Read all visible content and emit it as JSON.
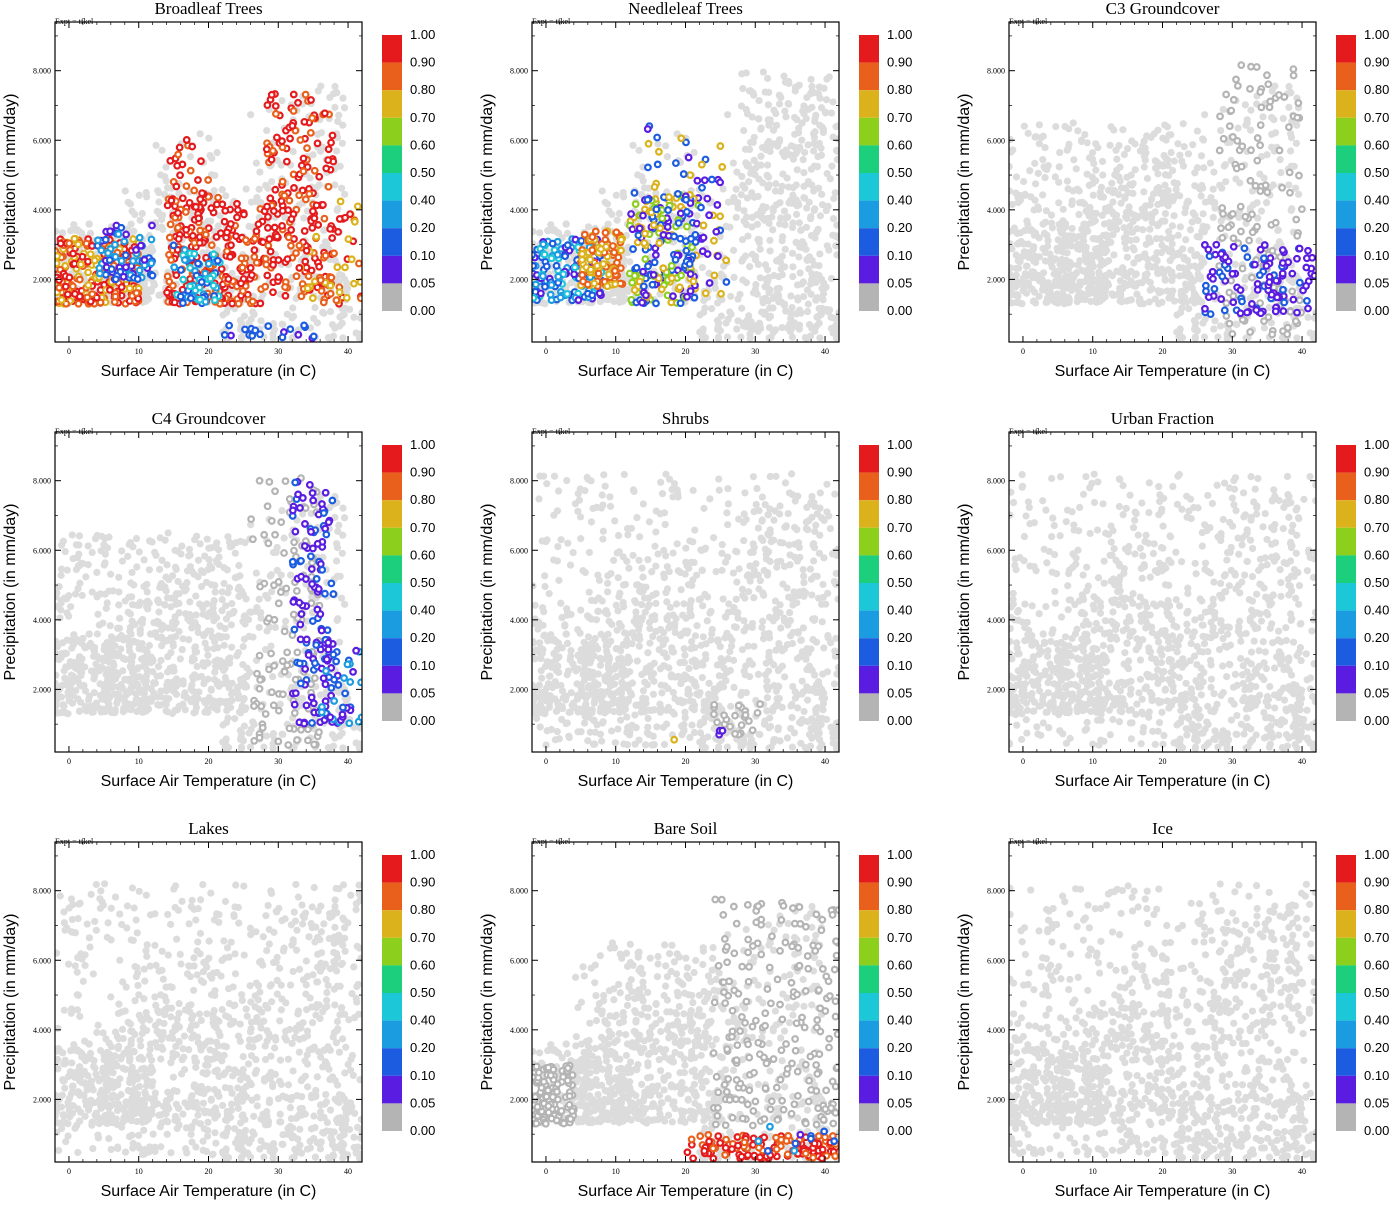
{
  "expt_label": "Expt = tfkel",
  "colorbar": {
    "labels": [
      "1.00",
      "0.90",
      "0.80",
      "0.70",
      "0.60",
      "0.50",
      "0.40",
      "0.20",
      "0.10",
      "0.05",
      "0.00"
    ],
    "colors": [
      "#e41a1c",
      "#e8601c",
      "#dcb21c",
      "#8ccf1c",
      "#1ccf7c",
      "#1cc8d8",
      "#1c9ce0",
      "#1c5ce0",
      "#5a1ce0",
      "#b4b4b4"
    ]
  },
  "chart_data": [
    {
      "type": "scatter",
      "title": "Broadleaf Trees",
      "xlabel": "Surface Air Temperature (in C)",
      "ylabel": "Precipitation (in mm/day)",
      "xlim": [
        -2,
        42
      ],
      "ylim": [
        0.2,
        9.4
      ],
      "xticks": [
        "0",
        "10",
        "20",
        "30",
        "40"
      ],
      "yticks": [
        "2.000",
        "4.000",
        "6.000",
        "8.000"
      ],
      "clusters": [
        {
          "x": [
            -2,
            10
          ],
          "y": [
            1.3,
            3.2
          ],
          "n": 260,
          "c": [
            7,
            8,
            9
          ]
        },
        {
          "x": [
            4,
            12
          ],
          "y": [
            2.0,
            3.6
          ],
          "n": 70,
          "c": [
            2,
            3,
            1
          ]
        },
        {
          "x": [
            14,
            28
          ],
          "y": [
            1.3,
            4.4
          ],
          "n": 220,
          "c": [
            9,
            9,
            8
          ]
        },
        {
          "x": [
            14,
            20
          ],
          "y": [
            3.0,
            6.2
          ],
          "n": 40,
          "c": [
            9,
            8,
            9
          ]
        },
        {
          "x": [
            28,
            38
          ],
          "y": [
            1.5,
            7.5
          ],
          "n": 180,
          "c": [
            9,
            8,
            9
          ]
        },
        {
          "x": [
            33,
            42
          ],
          "y": [
            1.3,
            4.5
          ],
          "n": 60,
          "c": [
            8,
            7,
            9
          ]
        },
        {
          "x": [
            15,
            22
          ],
          "y": [
            1.3,
            3.0
          ],
          "n": 60,
          "c": [
            3,
            2,
            4
          ]
        },
        {
          "x": [
            22,
            36
          ],
          "y": [
            0.3,
            0.7
          ],
          "n": 18,
          "c": [
            2,
            1,
            2
          ]
        }
      ]
    },
    {
      "type": "scatter",
      "title": "Needleleaf Trees",
      "xlabel": "Surface Air Temperature (in C)",
      "ylabel": "Precipitation (in mm/day)",
      "xlim": [
        -2,
        42
      ],
      "ylim": [
        0.2,
        9.4
      ],
      "xticks": [
        "0",
        "10",
        "20",
        "30",
        "40"
      ],
      "yticks": [
        "2.000",
        "4.000",
        "6.000",
        "8.000"
      ],
      "clusters": [
        {
          "x": [
            28,
            42
          ],
          "y": [
            0.5,
            8.0
          ],
          "n": 260,
          "c": [
            -1
          ]
        },
        {
          "x": [
            -2,
            8
          ],
          "y": [
            1.4,
            3.2
          ],
          "n": 160,
          "c": [
            2,
            3,
            1,
            4
          ]
        },
        {
          "x": [
            5,
            11
          ],
          "y": [
            1.8,
            3.4
          ],
          "n": 110,
          "c": [
            8,
            7
          ]
        },
        {
          "x": [
            12,
            22
          ],
          "y": [
            1.3,
            4.5
          ],
          "n": 170,
          "c": [
            7,
            6,
            2,
            1
          ]
        },
        {
          "x": [
            14,
            26
          ],
          "y": [
            1.5,
            6.5
          ],
          "n": 90,
          "c": [
            1,
            2,
            7
          ]
        }
      ]
    },
    {
      "type": "scatter",
      "title": "C3 Groundcover",
      "xlabel": "Surface Air Temperature (in C)",
      "ylabel": "Precipitation (in mm/day)",
      "xlim": [
        -2,
        42
      ],
      "ylim": [
        0.2,
        9.4
      ],
      "xticks": [
        "0",
        "10",
        "20",
        "30",
        "40"
      ],
      "yticks": [
        "2.000",
        "4.000",
        "6.000",
        "8.000"
      ],
      "clusters": [
        {
          "x": [
            -2,
            26
          ],
          "y": [
            1.3,
            6.5
          ],
          "n": 420,
          "c": [
            -1
          ]
        },
        {
          "x": [
            28,
            40
          ],
          "y": [
            0.4,
            8.2
          ],
          "n": 130,
          "c": [
            0
          ]
        },
        {
          "x": [
            26,
            42
          ],
          "y": [
            1.0,
            3.0
          ],
          "n": 110,
          "c": [
            1,
            1,
            2
          ]
        }
      ]
    },
    {
      "type": "scatter",
      "title": "C4 Groundcover",
      "xlabel": "Surface Air Temperature (in C)",
      "ylabel": "Precipitation (in mm/day)",
      "xlim": [
        -2,
        42
      ],
      "ylim": [
        0.2,
        9.4
      ],
      "xticks": [
        "0",
        "10",
        "20",
        "30",
        "40"
      ],
      "yticks": [
        "2.000",
        "4.000",
        "6.000",
        "8.000"
      ],
      "clusters": [
        {
          "x": [
            -2,
            26
          ],
          "y": [
            1.3,
            6.5
          ],
          "n": 420,
          "c": [
            -1
          ]
        },
        {
          "x": [
            26,
            36
          ],
          "y": [
            0.4,
            8.2
          ],
          "n": 120,
          "c": [
            0
          ]
        },
        {
          "x": [
            32,
            38
          ],
          "y": [
            1.0,
            8.0
          ],
          "n": 130,
          "c": [
            1,
            1,
            2
          ]
        },
        {
          "x": [
            36,
            42
          ],
          "y": [
            1.0,
            3.2
          ],
          "n": 40,
          "c": [
            3,
            2,
            1
          ]
        }
      ]
    },
    {
      "type": "scatter",
      "title": "Shrubs",
      "xlabel": "Surface Air Temperature (in C)",
      "ylabel": "Precipitation (in mm/day)",
      "xlim": [
        -2,
        42
      ],
      "ylim": [
        0.2,
        9.4
      ],
      "xticks": [
        "0",
        "10",
        "20",
        "30",
        "40"
      ],
      "yticks": [
        "2.000",
        "4.000",
        "6.000",
        "8.000"
      ],
      "clusters": [
        {
          "x": [
            -2,
            42
          ],
          "y": [
            0.4,
            8.2
          ],
          "n": 620,
          "c": [
            -1
          ]
        },
        {
          "x": [
            24,
            31
          ],
          "y": [
            0.7,
            1.6
          ],
          "n": 22,
          "c": [
            0
          ]
        },
        {
          "x": [
            24,
            26
          ],
          "y": [
            0.7,
            0.9
          ],
          "n": 3,
          "c": [
            1
          ]
        },
        {
          "x": [
            18,
            19
          ],
          "y": [
            0.55,
            0.6
          ],
          "n": 1,
          "c": [
            7
          ]
        }
      ]
    },
    {
      "type": "scatter",
      "title": "Urban Fraction",
      "xlabel": "Surface Air Temperature (in C)",
      "ylabel": "Precipitation (in mm/day)",
      "xlim": [
        -2,
        42
      ],
      "ylim": [
        0.2,
        9.4
      ],
      "xticks": [
        "0",
        "10",
        "20",
        "30",
        "40"
      ],
      "yticks": [
        "2.000",
        "4.000",
        "6.000",
        "8.000"
      ],
      "clusters": [
        {
          "x": [
            -2,
            42
          ],
          "y": [
            0.4,
            8.2
          ],
          "n": 640,
          "c": [
            -1
          ]
        }
      ]
    },
    {
      "type": "scatter",
      "title": "Lakes",
      "xlabel": "Surface Air Temperature (in C)",
      "ylabel": "Precipitation (in mm/day)",
      "xlim": [
        -2,
        42
      ],
      "ylim": [
        0.2,
        9.4
      ],
      "xticks": [
        "0",
        "10",
        "20",
        "30",
        "40"
      ],
      "yticks": [
        "2.000",
        "4.000",
        "6.000",
        "8.000"
      ],
      "clusters": [
        {
          "x": [
            -2,
            42
          ],
          "y": [
            0.4,
            8.2
          ],
          "n": 640,
          "c": [
            -1
          ]
        }
      ]
    },
    {
      "type": "scatter",
      "title": "Bare Soil",
      "xlabel": "Surface Air Temperature (in C)",
      "ylabel": "Precipitation (in mm/day)",
      "xlim": [
        -2,
        42
      ],
      "ylim": [
        0.2,
        9.4
      ],
      "xticks": [
        "0",
        "10",
        "20",
        "30",
        "40"
      ],
      "yticks": [
        "2.000",
        "4.000",
        "6.000",
        "8.000"
      ],
      "clusters": [
        {
          "x": [
            4,
            26
          ],
          "y": [
            1.3,
            6.5
          ],
          "n": 300,
          "c": [
            -1
          ]
        },
        {
          "x": [
            -2,
            4
          ],
          "y": [
            1.3,
            3.0
          ],
          "n": 120,
          "c": [
            0
          ]
        },
        {
          "x": [
            24,
            42
          ],
          "y": [
            1.2,
            7.8
          ],
          "n": 220,
          "c": [
            0
          ]
        },
        {
          "x": [
            20,
            42
          ],
          "y": [
            0.3,
            1.0
          ],
          "n": 130,
          "c": [
            9,
            9,
            8
          ]
        },
        {
          "x": [
            30,
            42
          ],
          "y": [
            0.5,
            1.3
          ],
          "n": 10,
          "c": [
            2,
            1,
            3
          ]
        }
      ]
    },
    {
      "type": "scatter",
      "title": "Ice",
      "xlabel": "Surface Air Temperature (in C)",
      "ylabel": "Precipitation (in mm/day)",
      "xlim": [
        -2,
        42
      ],
      "ylim": [
        0.2,
        9.4
      ],
      "xticks": [
        "0",
        "10",
        "20",
        "30",
        "40"
      ],
      "yticks": [
        "2.000",
        "4.000",
        "6.000",
        "8.000"
      ],
      "clusters": [
        {
          "x": [
            -2,
            42
          ],
          "y": [
            0.4,
            8.2
          ],
          "n": 640,
          "c": [
            -1
          ]
        }
      ]
    }
  ]
}
